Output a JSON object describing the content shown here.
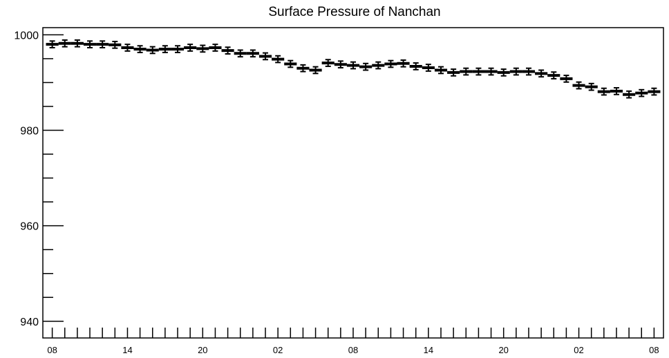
{
  "chart_data": {
    "type": "scatter",
    "title": "Surface Pressure of Nanchan",
    "xlabel": "",
    "ylabel": "",
    "ylim": [
      936.5,
      1001.5
    ],
    "y_ticks_major": [
      940,
      960,
      980,
      1000
    ],
    "x_tick_labels": [
      "08",
      "14",
      "20",
      "02",
      "08",
      "14",
      "20",
      "02",
      "08"
    ],
    "x_tick_label_indices": [
      0,
      6,
      12,
      18,
      24,
      30,
      36,
      42,
      48
    ],
    "grid": false,
    "legend": "none",
    "series": [
      {
        "values": [
          998.0,
          998.2,
          998.2,
          998.0,
          998.0,
          997.9,
          997.3,
          997.0,
          996.8,
          997.0,
          997.0,
          997.3,
          997.1,
          997.3,
          996.7,
          996.1,
          996.1,
          995.5,
          994.9,
          993.9,
          993.0,
          992.6,
          994.1,
          993.8,
          993.6,
          993.3,
          993.6,
          993.9,
          994.0,
          993.4,
          993.1,
          992.6,
          992.1,
          992.3,
          992.3,
          992.3,
          992.1,
          992.3,
          992.3,
          991.9,
          991.5,
          990.8,
          989.4,
          989.1,
          988.1,
          988.2,
          987.5,
          987.8,
          988.1
        ],
        "errors": [
          0.7,
          0.7,
          0.7,
          0.7,
          0.7,
          0.7,
          0.7,
          0.7,
          0.7,
          0.7,
          0.7,
          0.7,
          0.7,
          0.7,
          0.7,
          0.7,
          0.7,
          0.7,
          0.7,
          0.7,
          0.7,
          0.7,
          0.7,
          0.7,
          0.7,
          0.7,
          0.7,
          0.7,
          0.7,
          0.7,
          0.7,
          0.7,
          0.7,
          0.7,
          0.7,
          0.7,
          0.7,
          0.7,
          0.7,
          0.7,
          0.7,
          0.7,
          0.7,
          0.7,
          0.7,
          0.7,
          0.7,
          0.7,
          0.7
        ]
      }
    ],
    "colors": {
      "marker": "#000000",
      "axis": "#000000",
      "background": "#ffffff"
    }
  }
}
